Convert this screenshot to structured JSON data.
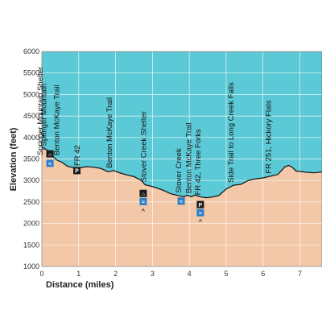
{
  "chart_data": {
    "type": "area",
    "xlabel": "Distance (miles)",
    "ylabel": "Elevation (feet)",
    "xlim": [
      0,
      7.6
    ],
    "ylim": [
      1000,
      6000
    ],
    "x_ticks": [
      0,
      1,
      2,
      3,
      4,
      5,
      6,
      7
    ],
    "y_ticks": [
      1000,
      1500,
      2000,
      2500,
      3000,
      3500,
      4000,
      4500,
      5000,
      5500,
      6000
    ],
    "grid": true,
    "colors": {
      "sky": "#5cc9d6",
      "ground": "#f2c8a8",
      "grid": "#ffffff",
      "line": "#1a1a1a"
    },
    "profile": {
      "x": [
        0,
        0.08,
        0.15,
        0.2,
        0.3,
        0.4,
        0.55,
        0.7,
        0.85,
        1.0,
        1.2,
        1.4,
        1.6,
        1.8,
        1.95,
        2.1,
        2.3,
        2.5,
        2.7,
        2.8,
        2.95,
        3.1,
        3.3,
        3.5,
        3.7,
        3.85,
        3.95,
        4.05,
        4.15,
        4.3,
        4.45,
        4.6,
        4.8,
        5.0,
        5.2,
        5.4,
        5.6,
        5.8,
        6.0,
        6.2,
        6.4,
        6.5,
        6.6,
        6.7,
        6.8,
        6.9,
        7.0,
        7.2,
        7.4,
        7.6
      ],
      "y": [
        3780,
        3740,
        3700,
        3650,
        3560,
        3480,
        3420,
        3330,
        3300,
        3290,
        3320,
        3310,
        3280,
        3200,
        3230,
        3180,
        3130,
        3090,
        3000,
        2900,
        2870,
        2830,
        2770,
        2690,
        2650,
        2620,
        2660,
        2620,
        2660,
        2620,
        2600,
        2610,
        2650,
        2800,
        2890,
        2910,
        3000,
        3040,
        3060,
        3100,
        3140,
        3230,
        3320,
        3350,
        3300,
        3220,
        3210,
        3190,
        3180,
        3200
      ]
    },
    "annotations": [
      {
        "text": "Springer Mountain Shelter",
        "x": 0.02,
        "y": 3580
      },
      {
        "text": "Springer Mountain",
        "x": 0.12,
        "y": 3800
      },
      {
        "text": "Benton McKaye Trail",
        "x": 0.47,
        "y": 3580
      },
      {
        "text": "FR 42",
        "x": 1.03,
        "y": 3340
      },
      {
        "text": "Benton McKaye Trail",
        "x": 1.9,
        "y": 3290
      },
      {
        "text": "Stover Creek Shelter",
        "x": 2.83,
        "y": 2960
      },
      {
        "text": "Stover Creek",
        "x": 3.78,
        "y": 2710
      },
      {
        "text": "Benton McKaye Trail",
        "x": 4.05,
        "y": 2700
      },
      {
        "text": "FR 42, Three Forks",
        "x": 4.3,
        "y": 2660
      },
      {
        "text": "Side Trail to Long Creek Falls",
        "x": 5.2,
        "y": 2950
      },
      {
        "text": "FR 251, Hickory Flats",
        "x": 6.22,
        "y": 3160
      }
    ],
    "icons": [
      {
        "name": "shelter-icon",
        "x": 0.22,
        "y": 3620,
        "glyph": "⌂",
        "bg": "#1a1a1a",
        "fg": "#ffffff"
      },
      {
        "name": "water-icon",
        "x": 0.22,
        "y": 3400,
        "glyph": "≈",
        "bg": "#2a7fc9",
        "fg": "#ffffff"
      },
      {
        "name": "parking-icon",
        "x": 0.95,
        "y": 3230,
        "glyph": "P",
        "bg": "#1a1a1a",
        "fg": "#ffffff"
      },
      {
        "name": "shelter-icon",
        "x": 2.75,
        "y": 2700,
        "glyph": "⌂",
        "bg": "#1a1a1a",
        "fg": "#ffffff"
      },
      {
        "name": "water-icon",
        "x": 2.75,
        "y": 2510,
        "glyph": "≈",
        "bg": "#2a7fc9",
        "fg": "#ffffff"
      },
      {
        "name": "campsite-icon",
        "x": 2.75,
        "y": 2300,
        "glyph": "^",
        "bg": "none",
        "fg": "#1a1a1a"
      },
      {
        "name": "water-icon",
        "x": 3.78,
        "y": 2520,
        "glyph": "≈",
        "bg": "#2a7fc9",
        "fg": "#ffffff"
      },
      {
        "name": "parking-icon",
        "x": 4.3,
        "y": 2440,
        "glyph": "P",
        "bg": "#1a1a1a",
        "fg": "#ffffff"
      },
      {
        "name": "water-icon",
        "x": 4.3,
        "y": 2250,
        "glyph": "≈",
        "bg": "#2a7fc9",
        "fg": "#ffffff"
      },
      {
        "name": "campsite-icon",
        "x": 4.3,
        "y": 2050,
        "glyph": "^",
        "bg": "none",
        "fg": "#1a1a1a"
      }
    ]
  }
}
